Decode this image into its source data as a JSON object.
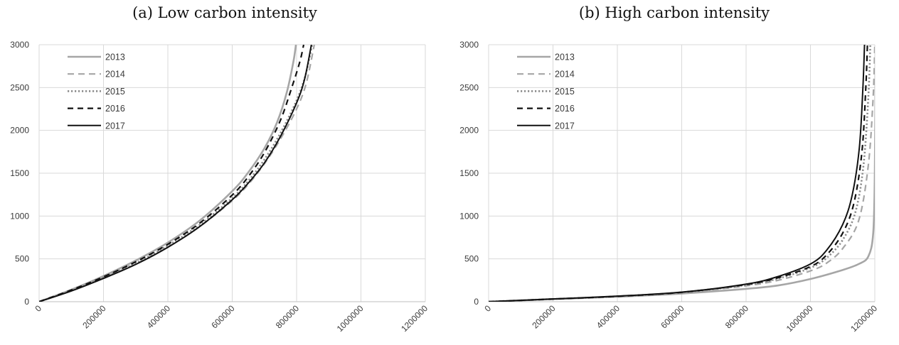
{
  "chart_data": [
    {
      "type": "line",
      "title": "(a) Low carbon intensity",
      "xlim": [
        0,
        1200000
      ],
      "ylim": [
        0,
        3000
      ],
      "x_ticks": [
        0,
        200000,
        400000,
        600000,
        800000,
        1000000,
        1200000
      ],
      "y_ticks": [
        0,
        500,
        1000,
        1500,
        2000,
        2500,
        3000
      ],
      "grid": true,
      "legend_position": "top-left",
      "series": [
        {
          "name": "2013",
          "points": [
            [
              0,
              0
            ],
            [
              100000,
              140
            ],
            [
              200000,
              300
            ],
            [
              300000,
              480
            ],
            [
              400000,
              690
            ],
            [
              500000,
              950
            ],
            [
              600000,
              1290
            ],
            [
              650000,
              1510
            ],
            [
              700000,
              1790
            ],
            [
              740000,
              2100
            ],
            [
              770000,
              2450
            ],
            [
              790000,
              2800
            ],
            [
              798000,
              3000
            ]
          ]
        },
        {
          "name": "2014",
          "points": [
            [
              0,
              0
            ],
            [
              100000,
              130
            ],
            [
              200000,
              280
            ],
            [
              300000,
              440
            ],
            [
              400000,
              640
            ],
            [
              500000,
              880
            ],
            [
              600000,
              1180
            ],
            [
              650000,
              1370
            ],
            [
              700000,
              1610
            ],
            [
              750000,
              1900
            ],
            [
              800000,
              2250
            ],
            [
              830000,
              2550
            ],
            [
              855000,
              3000
            ]
          ]
        },
        {
          "name": "2015",
          "points": [
            [
              0,
              0
            ],
            [
              100000,
              132
            ],
            [
              200000,
              285
            ],
            [
              300000,
              450
            ],
            [
              400000,
              655
            ],
            [
              500000,
              900
            ],
            [
              600000,
              1210
            ],
            [
              650000,
              1410
            ],
            [
              700000,
              1660
            ],
            [
              750000,
              1970
            ],
            [
              800000,
              2350
            ],
            [
              828000,
              2650
            ],
            [
              848000,
              3000
            ]
          ]
        },
        {
          "name": "2016",
          "points": [
            [
              0,
              0
            ],
            [
              100000,
              136
            ],
            [
              200000,
              290
            ],
            [
              300000,
              465
            ],
            [
              400000,
              670
            ],
            [
              500000,
              920
            ],
            [
              600000,
              1245
            ],
            [
              650000,
              1460
            ],
            [
              700000,
              1740
            ],
            [
              750000,
              2120
            ],
            [
              785000,
              2500
            ],
            [
              810000,
              2800
            ],
            [
              822000,
              3000
            ]
          ]
        },
        {
          "name": "2017",
          "points": [
            [
              0,
              0
            ],
            [
              100000,
              125
            ],
            [
              200000,
              272
            ],
            [
              300000,
              435
            ],
            [
              400000,
              635
            ],
            [
              500000,
              880
            ],
            [
              600000,
              1190
            ],
            [
              650000,
              1385
            ],
            [
              700000,
              1620
            ],
            [
              750000,
              1930
            ],
            [
              800000,
              2320
            ],
            [
              825000,
              2600
            ],
            [
              846000,
              3000
            ]
          ]
        }
      ]
    },
    {
      "type": "line",
      "title": "(b) High carbon intensity",
      "xlim": [
        0,
        1200000
      ],
      "ylim": [
        0,
        3000
      ],
      "x_ticks": [
        0,
        200000,
        400000,
        600000,
        800000,
        1000000,
        1200000
      ],
      "y_ticks": [
        0,
        500,
        1000,
        1500,
        2000,
        2500,
        3000
      ],
      "grid": true,
      "legend_position": "top-left",
      "series": [
        {
          "name": "2013",
          "points": [
            [
              0,
              0
            ],
            [
              200000,
              30
            ],
            [
              400000,
              58
            ],
            [
              600000,
              95
            ],
            [
              800000,
              150
            ],
            [
              900000,
              190
            ],
            [
              1000000,
              265
            ],
            [
              1100000,
              370
            ],
            [
              1150000,
              440
            ],
            [
              1180000,
              530
            ],
            [
              1195000,
              800
            ],
            [
              1200000,
              1500
            ],
            [
              1203000,
              3000
            ]
          ]
        },
        {
          "name": "2014",
          "points": [
            [
              0,
              0
            ],
            [
              200000,
              31
            ],
            [
              400000,
              62
            ],
            [
              600000,
              105
            ],
            [
              800000,
              185
            ],
            [
              900000,
              250
            ],
            [
              1000000,
              360
            ],
            [
              1050000,
              450
            ],
            [
              1100000,
              620
            ],
            [
              1150000,
              950
            ],
            [
              1180000,
              1600
            ],
            [
              1195000,
              2400
            ],
            [
              1200000,
              3000
            ]
          ]
        },
        {
          "name": "2015",
          "points": [
            [
              0,
              0
            ],
            [
              200000,
              31
            ],
            [
              400000,
              62
            ],
            [
              600000,
              108
            ],
            [
              800000,
              195
            ],
            [
              900000,
              270
            ],
            [
              1000000,
              395
            ],
            [
              1050000,
              510
            ],
            [
              1100000,
              720
            ],
            [
              1140000,
              1050
            ],
            [
              1165000,
              1600
            ],
            [
              1180000,
              2400
            ],
            [
              1186000,
              3000
            ]
          ]
        },
        {
          "name": "2016",
          "points": [
            [
              0,
              0
            ],
            [
              200000,
              31
            ],
            [
              400000,
              63
            ],
            [
              600000,
              110
            ],
            [
              800000,
              200
            ],
            [
              900000,
              280
            ],
            [
              1000000,
              410
            ],
            [
              1050000,
              545
            ],
            [
              1100000,
              800
            ],
            [
              1135000,
              1150
            ],
            [
              1160000,
              1750
            ],
            [
              1172000,
              2500
            ],
            [
              1177000,
              3000
            ]
          ]
        },
        {
          "name": "2017",
          "points": [
            [
              0,
              0
            ],
            [
              200000,
              32
            ],
            [
              400000,
              65
            ],
            [
              600000,
              112
            ],
            [
              800000,
              205
            ],
            [
              900000,
              295
            ],
            [
              1000000,
              440
            ],
            [
              1050000,
              600
            ],
            [
              1100000,
              900
            ],
            [
              1130000,
              1250
            ],
            [
              1152000,
              1800
            ],
            [
              1163000,
              2500
            ],
            [
              1168000,
              3000
            ]
          ]
        }
      ]
    }
  ]
}
